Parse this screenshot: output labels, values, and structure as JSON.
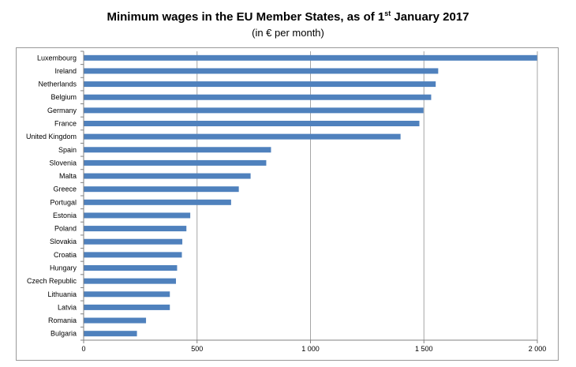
{
  "chart_data": {
    "type": "bar",
    "orientation": "horizontal",
    "title_main": "Minimum wages in the EU Member States, as of 1",
    "title_sup": "st",
    "title_tail": " January 2017",
    "subtitle": "(in € per month)",
    "categories": [
      "Luxembourg",
      "Ireland",
      "Netherlands",
      "Belgium",
      "Germany",
      "France",
      "United Kingdom",
      "Spain",
      "Slovenia",
      "Malta",
      "Greece",
      "Portugal",
      "Estonia",
      "Poland",
      "Slovakia",
      "Croatia",
      "Hungary",
      "Czech Republic",
      "Lithuania",
      "Latvia",
      "Romania",
      "Bulgaria"
    ],
    "values": [
      1999,
      1563,
      1552,
      1532,
      1498,
      1480,
      1397,
      826,
      805,
      736,
      684,
      650,
      470,
      453,
      435,
      433,
      412,
      407,
      380,
      380,
      275,
      235
    ],
    "xlim": [
      0,
      2000
    ],
    "xticks": [
      0,
      500,
      1000,
      1500,
      2000
    ],
    "xtick_labels": [
      "0",
      "500",
      "1 000",
      "1 500",
      "2 000"
    ],
    "grid": true,
    "colors": {
      "bar": "#4F81BD",
      "grid": "#A6A6A6",
      "axis": "#808080"
    }
  }
}
